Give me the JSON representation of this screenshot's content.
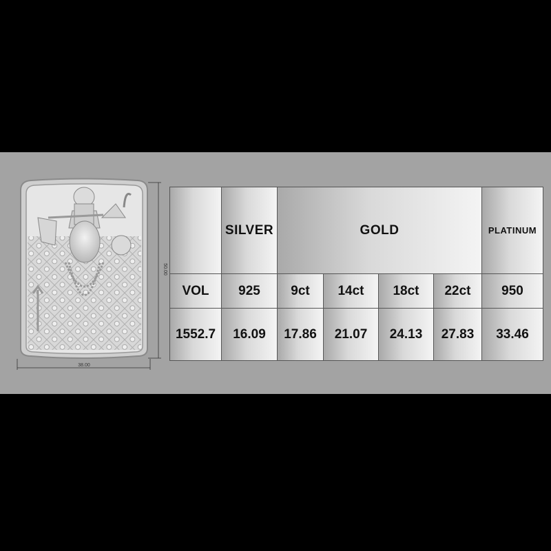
{
  "drawing": {
    "width_dim": "38.00",
    "height_dim": "50.00"
  },
  "table": {
    "header": {
      "blank": "",
      "silver": "SILVER",
      "gold": "GOLD",
      "platinum": "PLATINUM"
    },
    "purity": [
      "VOL",
      "925",
      "9ct",
      "14ct",
      "18ct",
      "22ct",
      "950"
    ],
    "values": [
      "1552.7",
      "16.09",
      "17.86",
      "21.07",
      "24.13",
      "27.83",
      "33.46"
    ]
  }
}
